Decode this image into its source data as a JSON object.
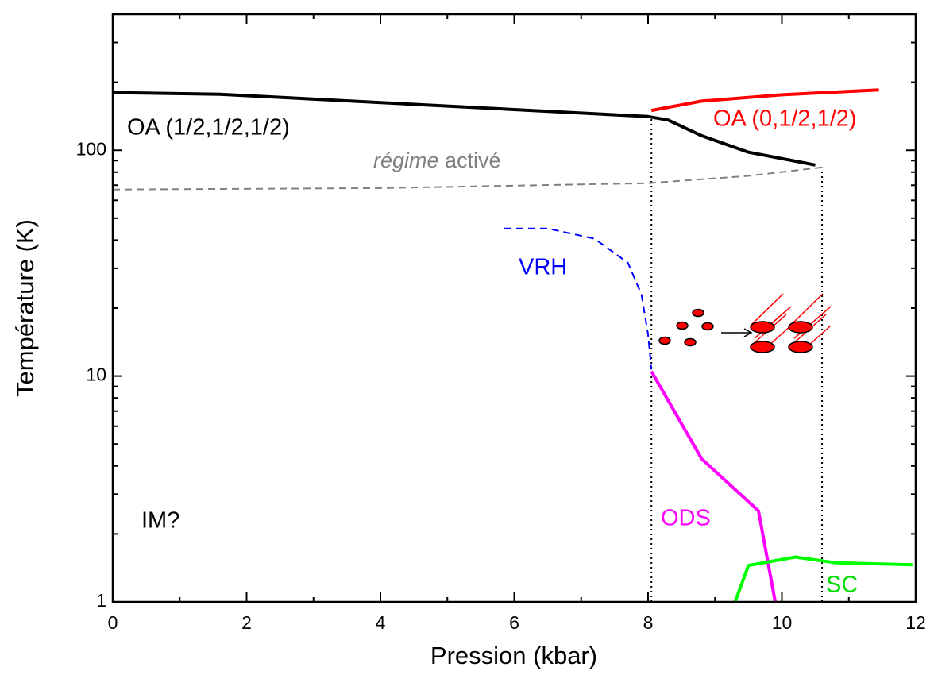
{
  "chart_data": {
    "type": "line",
    "x_label": "Pression (kbar)",
    "y_label": "Température (K)",
    "xlim": [
      0,
      12
    ],
    "ylim": [
      1,
      400
    ],
    "xticks": [
      0,
      2,
      4,
      6,
      8,
      10,
      12
    ],
    "yticks": [
      1,
      10,
      100
    ],
    "log_y": true,
    "series": [
      {
        "name": "OA (1/2,1/2,1/2)",
        "color": "#000000",
        "dash": "solid",
        "width": 4,
        "x": [
          0,
          1.6,
          8.0,
          8.3,
          8.8,
          9.5,
          10.5
        ],
        "values": [
          180,
          177,
          141,
          136,
          116,
          98,
          86
        ]
      },
      {
        "name": "OA (0,1/2,1/2)",
        "color": "#ff0000",
        "dash": "solid",
        "width": 4,
        "x": [
          8.05,
          8.8,
          10.0,
          11.45
        ],
        "values": [
          150,
          165,
          176,
          185
        ]
      },
      {
        "name": "régime activé",
        "color": "#808080",
        "dash": "dashed",
        "width": 2,
        "x": [
          0,
          4,
          8,
          9.5,
          10.6
        ],
        "values": [
          67,
          68,
          71.5,
          77,
          84
        ]
      },
      {
        "name": "VRH",
        "color": "#0000ff",
        "dash": "dashed",
        "width": 2,
        "x": [
          5.85,
          6.5,
          7.2,
          7.7,
          7.9,
          8.0,
          8.05
        ],
        "values": [
          45,
          45,
          40.6,
          31.7,
          23,
          15.3,
          10.7
        ]
      },
      {
        "name": "ODS",
        "color": "#ff00ff",
        "dash": "solid",
        "width": 4,
        "x": [
          8.05,
          8.8,
          9.65,
          9.9
        ],
        "values": [
          10.5,
          4.3,
          2.53,
          1.0
        ]
      },
      {
        "name": "SC",
        "color": "#00ff00",
        "dash": "solid",
        "width": 4,
        "x": [
          9.3,
          9.5,
          10.2,
          10.8,
          11.95
        ],
        "values": [
          1.0,
          1.45,
          1.58,
          1.49,
          1.46
        ]
      }
    ],
    "reference_lines": [
      {
        "x": 8.05,
        "ymax": 141
      },
      {
        "x": 10.6,
        "ymax": 84
      }
    ],
    "annotations": {
      "oa_half": "OA (1/2,1/2,1/2)",
      "oa_zero": "OA (0,1/2,1/2)",
      "regime": "régime",
      "active": " activé",
      "vrh": "VRH",
      "ods": "ODS",
      "sc": "SC",
      "im": "IM?"
    }
  }
}
